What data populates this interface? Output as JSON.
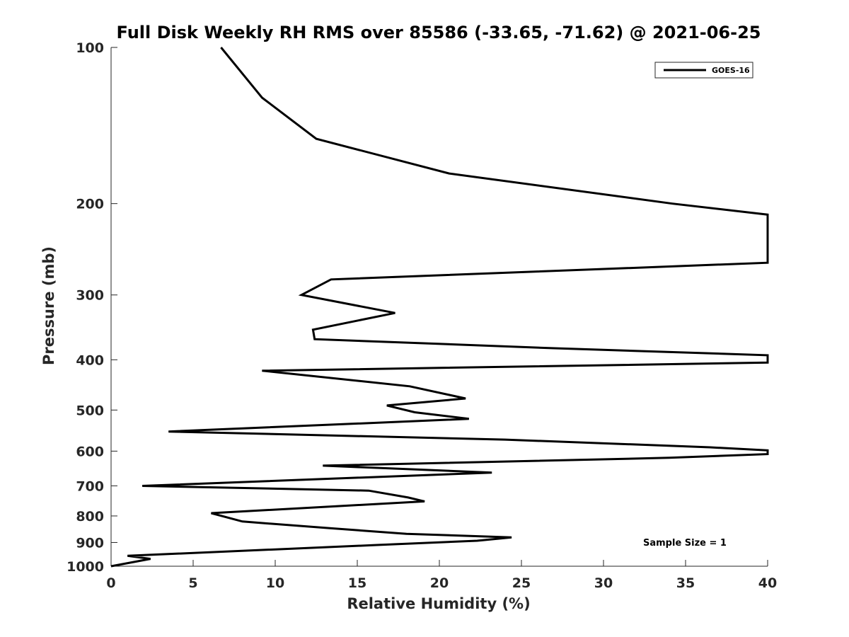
{
  "chart_data": {
    "type": "line",
    "title": "Full Disk Weekly RH RMS over 85586 (-33.65, -71.62) @ 2021-06-25",
    "xlabel": "Relative Humidity (%)",
    "ylabel": "Pressure (mb)",
    "xlim": [
      0,
      40
    ],
    "ylim": [
      100,
      1000
    ],
    "y_scale": "log",
    "y_reversed": true,
    "grid": false,
    "legend_position": "top-right",
    "x_ticks": [
      0,
      5,
      10,
      15,
      20,
      25,
      30,
      35,
      40
    ],
    "y_ticks": [
      100,
      200,
      300,
      400,
      500,
      600,
      700,
      800,
      900,
      1000
    ],
    "annotation": "Sample Size = 1",
    "series": [
      {
        "name": "GOES-16",
        "color": "#000000",
        "points": [
          [
            6.7,
            100
          ],
          [
            9.2,
            125
          ],
          [
            12.5,
            150
          ],
          [
            20.6,
            175
          ],
          [
            34.2,
            200
          ],
          [
            40.0,
            210
          ],
          [
            40.0,
            260
          ],
          [
            13.4,
            280
          ],
          [
            11.6,
            300
          ],
          [
            17.3,
            325
          ],
          [
            12.3,
            350
          ],
          [
            12.4,
            365
          ],
          [
            27.0,
            380
          ],
          [
            40.0,
            392
          ],
          [
            40.0,
            405
          ],
          [
            9.2,
            420
          ],
          [
            18.2,
            450
          ],
          [
            21.6,
            475
          ],
          [
            16.8,
            490
          ],
          [
            18.5,
            505
          ],
          [
            21.8,
            520
          ],
          [
            3.5,
            550
          ],
          [
            24.0,
            570
          ],
          [
            36.5,
            590
          ],
          [
            40.0,
            598
          ],
          [
            40.0,
            608
          ],
          [
            34.0,
            618
          ],
          [
            12.9,
            640
          ],
          [
            23.2,
            660
          ],
          [
            1.9,
            700
          ],
          [
            15.7,
            715
          ],
          [
            18.1,
            737
          ],
          [
            19.1,
            750
          ],
          [
            6.1,
            790
          ],
          [
            8.0,
            820
          ],
          [
            13.4,
            845
          ],
          [
            18.0,
            866
          ],
          [
            24.4,
            880
          ],
          [
            22.3,
            893
          ],
          [
            16.2,
            910
          ],
          [
            1.0,
            955
          ],
          [
            2.4,
            968
          ],
          [
            0.0,
            1000
          ]
        ]
      }
    ]
  }
}
